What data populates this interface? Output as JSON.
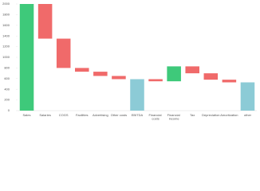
{
  "chart_data": {
    "type": "waterfall",
    "categories": [
      "Sales",
      "Salaries",
      "COGS",
      "Facilities",
      "Advertising",
      "Other costs",
      "EBITDA",
      "Financial costs",
      "Financial income",
      "Tax",
      "Depreciation",
      "Amortization",
      "other"
    ],
    "values": [
      2000,
      -650,
      -550,
      -70,
      -80,
      -60,
      590,
      -40,
      280,
      -130,
      -120,
      -50,
      530
    ],
    "measure": [
      "relative",
      "relative",
      "relative",
      "relative",
      "relative",
      "relative",
      "total",
      "relative",
      "relative",
      "relative",
      "relative",
      "relative",
      "total"
    ],
    "increase_color": "#3ec97a",
    "decrease_color": "#f06a6a",
    "total_color": "#8ccbd6",
    "ylim": [
      0,
      2000
    ],
    "yticks": [
      0,
      200,
      400,
      600,
      800,
      1000,
      1200,
      1400,
      1600,
      1800,
      2000
    ]
  }
}
